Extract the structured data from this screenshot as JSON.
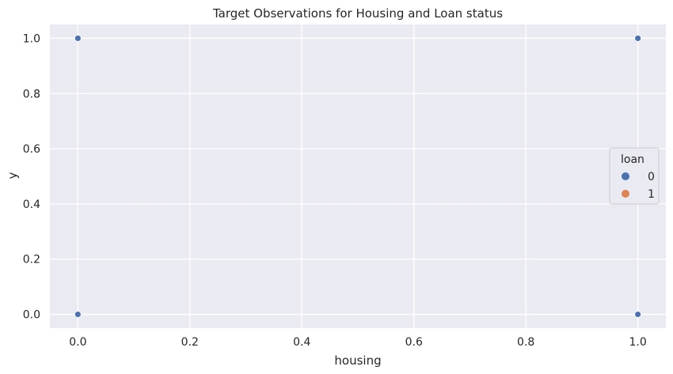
{
  "chart_data": {
    "type": "scatter",
    "title": "Target Observations for Housing and Loan status",
    "xlabel": "housing",
    "ylabel": "y",
    "xlim": [
      -0.05,
      1.05
    ],
    "ylim": [
      -0.05,
      1.05
    ],
    "x_ticks": [
      "0.0",
      "0.2",
      "0.4",
      "0.6",
      "0.8",
      "1.0"
    ],
    "y_ticks": [
      "0.0",
      "0.2",
      "0.4",
      "0.6",
      "0.8",
      "1.0"
    ],
    "grid": true,
    "legend": {
      "title": "loan",
      "placement": "right",
      "entries": [
        {
          "label": "0",
          "color": "#4c72b0"
        },
        {
          "label": "1",
          "color": "#dd8452"
        }
      ]
    },
    "series": [
      {
        "name": "0",
        "color": "#4c72b0",
        "points": [
          {
            "x": 0,
            "y": 1
          },
          {
            "x": 1,
            "y": 1
          },
          {
            "x": 0,
            "y": 0
          },
          {
            "x": 1,
            "y": 0
          }
        ]
      },
      {
        "name": "1",
        "color": "#dd8452",
        "points": []
      }
    ]
  },
  "style": {
    "plot_bg": "#eaeaf2",
    "grid_color": "#ffffff"
  }
}
